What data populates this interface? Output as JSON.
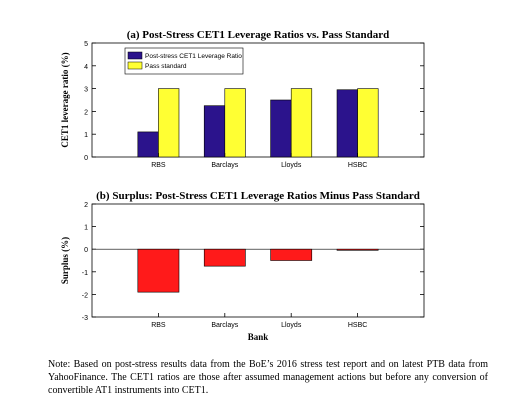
{
  "chart_data": [
    {
      "type": "bar",
      "title": "(a) Post-Stress CET1 Leverage Ratios vs. Pass Standard",
      "ylabel": "CET1 leverage ratio (%)",
      "xlabel": "",
      "categories": [
        "RBS",
        "Barclays",
        "Lloyds",
        "HSBC"
      ],
      "ylim": [
        0,
        5
      ],
      "yticks": [
        0,
        1,
        2,
        3,
        4,
        5
      ],
      "legend_position": "top-left",
      "series": [
        {
          "name": "Post-stress CET1 Leverage Ratio",
          "values": [
            1.1,
            2.25,
            2.5,
            2.95
          ],
          "color": "#2b138c"
        },
        {
          "name": "Pass standard",
          "values": [
            3,
            3,
            3,
            3
          ],
          "color": "#ffff33"
        }
      ]
    },
    {
      "type": "bar",
      "title": "(b) Surplus: Post-Stress CET1 Leverage Ratios Minus Pass Standard",
      "ylabel": "Surplus (%)",
      "xlabel": "Bank",
      "categories": [
        "RBS",
        "Barclays",
        "Lloyds",
        "HSBC"
      ],
      "ylim": [
        -3,
        2
      ],
      "yticks": [
        -3,
        -2,
        -1,
        0,
        1,
        2
      ],
      "series": [
        {
          "values": [
            -1.9,
            -0.75,
            -0.5,
            -0.05
          ],
          "color": "#ff1a1a"
        }
      ]
    }
  ],
  "note": "Note: Based on post-stress results data from the BoE’s 2016 stress test report and on latest PTB data from YahooFinance. The CET1 ratios are those after assumed management actions but before any conversion of convertible AT1 instruments into CET1."
}
